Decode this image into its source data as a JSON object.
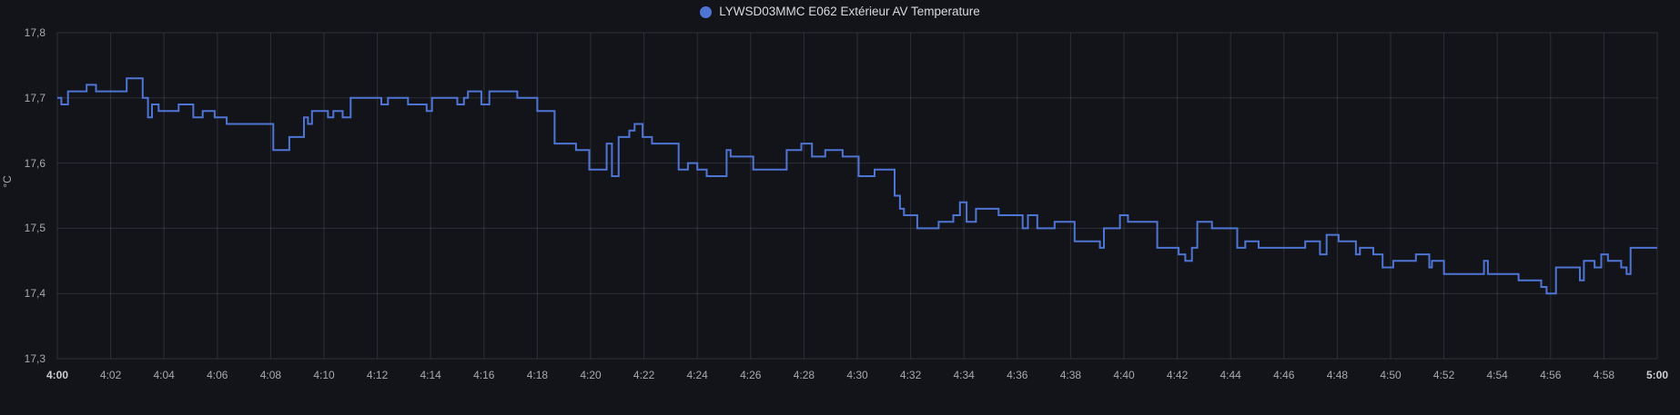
{
  "legend": {
    "series_label": "LYWSD03MMC E062 Extérieur AV Temperature",
    "series_color": "#4E74D4"
  },
  "y_axis": {
    "unit_label": "°C",
    "tick_labels": [
      "17,8",
      "17,7",
      "17,6",
      "17,5",
      "17,4",
      "17,3"
    ],
    "min": 17.3,
    "max": 17.8
  },
  "x_axis": {
    "tick_labels": [
      "4:00",
      "4:02",
      "4:04",
      "4:06",
      "4:08",
      "4:10",
      "4:12",
      "4:14",
      "4:16",
      "4:18",
      "4:20",
      "4:22",
      "4:24",
      "4:26",
      "4:28",
      "4:30",
      "4:32",
      "4:34",
      "4:36",
      "4:38",
      "4:40",
      "4:42",
      "4:44",
      "4:46",
      "4:48",
      "4:50",
      "4:52",
      "4:54",
      "4:56",
      "4:58",
      "5:00"
    ],
    "emphasized_labels": [
      "4:00",
      "5:00"
    ]
  },
  "colors": {
    "background": "#131419",
    "grid": "rgba(204,204,220,0.15)",
    "line": "#4E74D4",
    "tick_text": "#A8A9AD",
    "title_text": "#D8D9DC"
  },
  "chart_data": {
    "type": "line",
    "line_style": "step-after",
    "title": "LYWSD03MMC E062 Extérieur AV Temperature",
    "xlabel": "",
    "ylabel": "°C",
    "x_unit": "minutes after 4:00",
    "xlim_minutes": [
      0,
      60
    ],
    "ylim": [
      17.3,
      17.8
    ],
    "grid": true,
    "legend_position": "top-center",
    "series": [
      {
        "name": "LYWSD03MMC E062 Extérieur AV Temperature",
        "color": "#4E74D4",
        "points": [
          [
            0,
            17.7
          ],
          [
            0.15,
            17.69
          ],
          [
            0.4,
            17.71
          ],
          [
            1.1,
            17.72
          ],
          [
            1.45,
            17.71
          ],
          [
            2.6,
            17.73
          ],
          [
            3.2,
            17.7
          ],
          [
            3.4,
            17.67
          ],
          [
            3.55,
            17.69
          ],
          [
            3.8,
            17.68
          ],
          [
            4.55,
            17.69
          ],
          [
            5.1,
            17.67
          ],
          [
            5.45,
            17.68
          ],
          [
            5.9,
            17.67
          ],
          [
            6.35,
            17.66
          ],
          [
            8.1,
            17.62
          ],
          [
            8.7,
            17.64
          ],
          [
            9.25,
            17.67
          ],
          [
            9.4,
            17.66
          ],
          [
            9.55,
            17.68
          ],
          [
            10.15,
            17.67
          ],
          [
            10.35,
            17.68
          ],
          [
            10.7,
            17.67
          ],
          [
            11,
            17.7
          ],
          [
            12.15,
            17.69
          ],
          [
            12.4,
            17.7
          ],
          [
            13.15,
            17.69
          ],
          [
            13.85,
            17.68
          ],
          [
            14.05,
            17.7
          ],
          [
            15,
            17.69
          ],
          [
            15.25,
            17.7
          ],
          [
            15.4,
            17.71
          ],
          [
            15.9,
            17.69
          ],
          [
            16.2,
            17.71
          ],
          [
            17.25,
            17.7
          ],
          [
            18,
            17.68
          ],
          [
            18.65,
            17.63
          ],
          [
            19.45,
            17.62
          ],
          [
            19.95,
            17.59
          ],
          [
            20.6,
            17.63
          ],
          [
            20.8,
            17.58
          ],
          [
            21.05,
            17.64
          ],
          [
            21.45,
            17.65
          ],
          [
            21.65,
            17.66
          ],
          [
            21.95,
            17.64
          ],
          [
            22.3,
            17.63
          ],
          [
            23.3,
            17.59
          ],
          [
            23.65,
            17.6
          ],
          [
            24,
            17.59
          ],
          [
            24.35,
            17.58
          ],
          [
            25.1,
            17.62
          ],
          [
            25.25,
            17.61
          ],
          [
            26.1,
            17.59
          ],
          [
            27.35,
            17.62
          ],
          [
            27.9,
            17.63
          ],
          [
            28.3,
            17.61
          ],
          [
            28.8,
            17.62
          ],
          [
            29.45,
            17.61
          ],
          [
            30.05,
            17.58
          ],
          [
            30.65,
            17.59
          ],
          [
            31.4,
            17.55
          ],
          [
            31.6,
            17.53
          ],
          [
            31.75,
            17.52
          ],
          [
            32.25,
            17.5
          ],
          [
            33.05,
            17.51
          ],
          [
            33.6,
            17.52
          ],
          [
            33.85,
            17.54
          ],
          [
            34.1,
            17.51
          ],
          [
            34.45,
            17.53
          ],
          [
            35.3,
            17.52
          ],
          [
            36.2,
            17.5
          ],
          [
            36.4,
            17.52
          ],
          [
            36.75,
            17.5
          ],
          [
            37.4,
            17.51
          ],
          [
            38.15,
            17.48
          ],
          [
            39.1,
            17.47
          ],
          [
            39.25,
            17.5
          ],
          [
            39.85,
            17.52
          ],
          [
            40.15,
            17.51
          ],
          [
            41.25,
            17.47
          ],
          [
            42.05,
            17.46
          ],
          [
            42.3,
            17.45
          ],
          [
            42.55,
            17.47
          ],
          [
            42.75,
            17.51
          ],
          [
            43.3,
            17.5
          ],
          [
            44.25,
            17.47
          ],
          [
            44.55,
            17.48
          ],
          [
            45.05,
            17.47
          ],
          [
            46.8,
            17.48
          ],
          [
            47.35,
            17.46
          ],
          [
            47.6,
            17.49
          ],
          [
            48.05,
            17.48
          ],
          [
            48.7,
            17.46
          ],
          [
            48.85,
            17.47
          ],
          [
            49.35,
            17.46
          ],
          [
            49.7,
            17.44
          ],
          [
            50.1,
            17.45
          ],
          [
            50.95,
            17.46
          ],
          [
            51.45,
            17.44
          ],
          [
            51.55,
            17.45
          ],
          [
            52,
            17.43
          ],
          [
            53.5,
            17.45
          ],
          [
            53.65,
            17.43
          ],
          [
            54.8,
            17.42
          ],
          [
            55.65,
            17.41
          ],
          [
            55.85,
            17.4
          ],
          [
            56.2,
            17.44
          ],
          [
            57.1,
            17.42
          ],
          [
            57.25,
            17.45
          ],
          [
            57.65,
            17.44
          ],
          [
            57.9,
            17.46
          ],
          [
            58.15,
            17.45
          ],
          [
            58.65,
            17.44
          ],
          [
            58.85,
            17.43
          ],
          [
            59,
            17.47
          ],
          [
            60,
            17.47
          ]
        ]
      }
    ]
  }
}
